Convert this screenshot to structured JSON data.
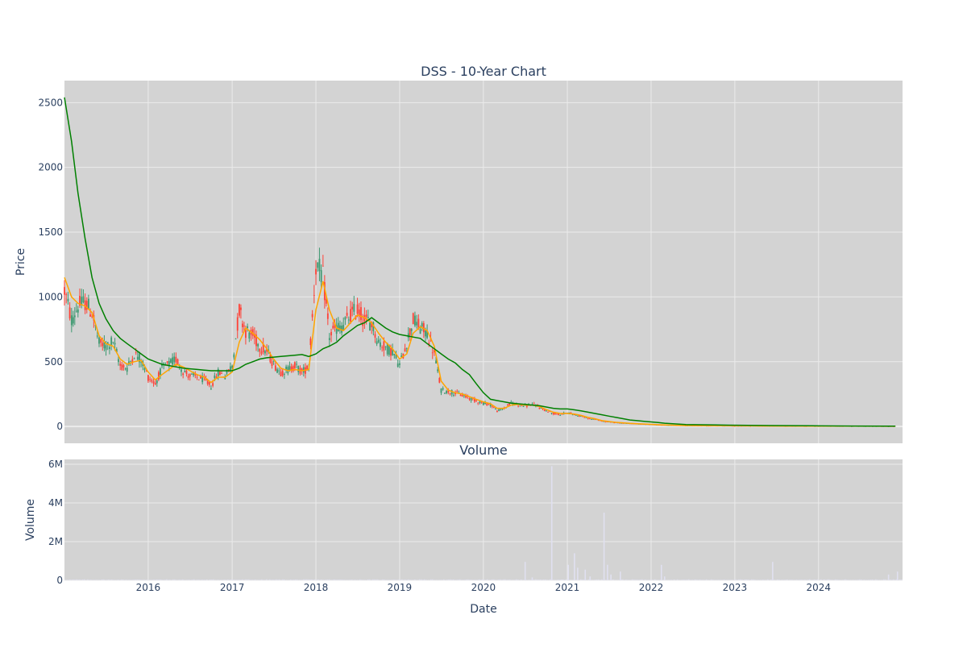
{
  "chart_data": [
    {
      "type": "candlestick",
      "title": "DSS - 10-Year Chart",
      "ylabel": "Price",
      "ylim": [
        -130,
        2670
      ],
      "xlim": [
        "2015-01-01",
        "2025-01-01"
      ],
      "yticks": [
        0,
        500,
        1000,
        1500,
        2000,
        2500
      ],
      "ytick_labels": [
        "0",
        "500",
        "1000",
        "1500",
        "2000",
        "2500"
      ],
      "grid": true,
      "colors": {
        "background": "#d3d3d3",
        "grid": "#ebebeb",
        "up": "#3d9970",
        "down": "#ff4136",
        "ma_short": "#ffa500",
        "ma_long": "#008000"
      },
      "price_points": {
        "dates": [
          "2015-01-01",
          "2015-02-01",
          "2015-03-01",
          "2015-04-01",
          "2015-05-01",
          "2015-06-01",
          "2015-07-01",
          "2015-08-01",
          "2015-09-01",
          "2015-10-01",
          "2015-11-01",
          "2015-12-01",
          "2016-01-01",
          "2016-02-01",
          "2016-03-01",
          "2016-04-01",
          "2016-05-01",
          "2016-06-01",
          "2016-07-01",
          "2016-08-01",
          "2016-09-01",
          "2016-10-01",
          "2016-11-01",
          "2016-12-01",
          "2017-01-01",
          "2017-02-01",
          "2017-03-01",
          "2017-04-01",
          "2017-05-01",
          "2017-06-01",
          "2017-07-01",
          "2017-08-01",
          "2017-09-01",
          "2017-10-01",
          "2017-11-01",
          "2017-12-01",
          "2018-01-01",
          "2018-02-01",
          "2018-03-01",
          "2018-04-01",
          "2018-05-01",
          "2018-06-01",
          "2018-07-01",
          "2018-08-01",
          "2018-09-01",
          "2018-10-01",
          "2018-11-01",
          "2018-12-01",
          "2019-01-01",
          "2019-02-01",
          "2019-03-01",
          "2019-04-01",
          "2019-05-01",
          "2019-06-01",
          "2019-07-01",
          "2019-08-01",
          "2019-09-01",
          "2019-10-01",
          "2019-11-01",
          "2019-12-01",
          "2020-01-01",
          "2020-02-01",
          "2020-03-01",
          "2020-04-01",
          "2020-05-01",
          "2020-06-01",
          "2020-07-01",
          "2020-08-01",
          "2020-09-01",
          "2020-10-01",
          "2020-11-01",
          "2020-12-01",
          "2021-01-01",
          "2021-02-01",
          "2021-03-01",
          "2021-04-01",
          "2021-05-01",
          "2021-06-01",
          "2021-07-01",
          "2021-08-01",
          "2021-09-01",
          "2021-10-01",
          "2021-11-01",
          "2021-12-01",
          "2022-01-01",
          "2022-02-01",
          "2022-03-01",
          "2022-06-01",
          "2022-12-01",
          "2023-06-01",
          "2023-12-01",
          "2024-06-01",
          "2024-12-01"
        ],
        "close": [
          1050,
          820,
          930,
          960,
          880,
          640,
          620,
          660,
          470,
          450,
          560,
          520,
          380,
          330,
          450,
          480,
          520,
          430,
          390,
          380,
          360,
          310,
          420,
          390,
          470,
          900,
          740,
          700,
          620,
          580,
          480,
          420,
          440,
          470,
          420,
          460,
          1250,
          1150,
          700,
          760,
          780,
          860,
          900,
          820,
          800,
          650,
          610,
          580,
          470,
          650,
          820,
          760,
          720,
          560,
          280,
          270,
          260,
          240,
          220,
          200,
          180,
          170,
          120,
          140,
          180,
          170,
          160,
          170,
          150,
          120,
          100,
          90,
          110,
          90,
          80,
          60,
          55,
          40,
          35,
          30,
          25,
          22,
          20,
          18,
          15,
          12,
          10,
          6,
          4,
          3,
          2,
          2,
          1
        ],
        "ma_short": [
          1150,
          1000,
          950,
          930,
          880,
          700,
          640,
          620,
          520,
          480,
          500,
          510,
          420,
          360,
          400,
          440,
          480,
          460,
          430,
          400,
          380,
          340,
          380,
          380,
          420,
          650,
          760,
          720,
          670,
          600,
          520,
          450,
          430,
          440,
          430,
          440,
          900,
          1120,
          900,
          760,
          740,
          800,
          860,
          840,
          800,
          720,
          650,
          600,
          520,
          560,
          720,
          770,
          740,
          620,
          350,
          280,
          260,
          250,
          230,
          210,
          190,
          175,
          140,
          140,
          165,
          170,
          165,
          165,
          155,
          130,
          110,
          100,
          100,
          95,
          85,
          70,
          60,
          45,
          38,
          32,
          28,
          24,
          21,
          19,
          16,
          13,
          11,
          7,
          5,
          3,
          2,
          2,
          1
        ],
        "ma_long": [
          2540,
          2200,
          1800,
          1450,
          1150,
          950,
          830,
          740,
          680,
          640,
          600,
          560,
          520,
          500,
          480,
          470,
          460,
          450,
          445,
          440,
          435,
          430,
          430,
          430,
          430,
          450,
          480,
          500,
          520,
          530,
          535,
          540,
          545,
          550,
          555,
          540,
          560,
          600,
          620,
          650,
          700,
          740,
          780,
          800,
          840,
          800,
          760,
          730,
          710,
          700,
          690,
          680,
          640,
          600,
          560,
          520,
          490,
          440,
          400,
          330,
          260,
          210,
          200,
          190,
          180,
          175,
          170,
          165,
          160,
          150,
          140,
          135,
          135,
          128,
          120,
          110,
          100,
          90,
          80,
          70,
          60,
          50,
          45,
          40,
          35,
          30,
          25,
          15,
          10,
          7,
          5,
          3,
          2
        ]
      }
    },
    {
      "type": "bar",
      "title": "Volume",
      "xlabel": "Date",
      "ylabel": "Volume",
      "ylim": [
        0,
        6250000
      ],
      "yticks": [
        0,
        2000000,
        4000000,
        6000000
      ],
      "ytick_labels": [
        "0",
        "2M",
        "4M",
        "6M"
      ],
      "xticks": [
        "2016-01-01",
        "2017-01-01",
        "2018-01-01",
        "2019-01-01",
        "2020-01-01",
        "2021-01-01",
        "2022-01-01",
        "2023-01-01",
        "2024-01-01"
      ],
      "xtick_labels": [
        "2016",
        "2017",
        "2018",
        "2019",
        "2020",
        "2021",
        "2022",
        "2023",
        "2024"
      ],
      "grid": true,
      "colors": {
        "background": "#d3d3d3",
        "bar": "#e0e0f0"
      },
      "spikes": [
        {
          "date": "2020-07-01",
          "volume": 950000
        },
        {
          "date": "2020-08-01",
          "volume": 150000
        },
        {
          "date": "2020-10-25",
          "volume": 5900000
        },
        {
          "date": "2021-01-05",
          "volume": 800000
        },
        {
          "date": "2021-02-01",
          "volume": 1400000
        },
        {
          "date": "2021-02-15",
          "volume": 650000
        },
        {
          "date": "2021-03-20",
          "volume": 550000
        },
        {
          "date": "2021-04-10",
          "volume": 200000
        },
        {
          "date": "2021-06-10",
          "volume": 3500000
        },
        {
          "date": "2021-06-25",
          "volume": 800000
        },
        {
          "date": "2021-07-10",
          "volume": 300000
        },
        {
          "date": "2021-08-20",
          "volume": 450000
        },
        {
          "date": "2022-02-15",
          "volume": 800000
        },
        {
          "date": "2022-03-01",
          "volume": 200000
        },
        {
          "date": "2023-06-15",
          "volume": 950000
        },
        {
          "date": "2024-11-01",
          "volume": 300000
        },
        {
          "date": "2024-12-10",
          "volume": 450000
        }
      ]
    }
  ]
}
